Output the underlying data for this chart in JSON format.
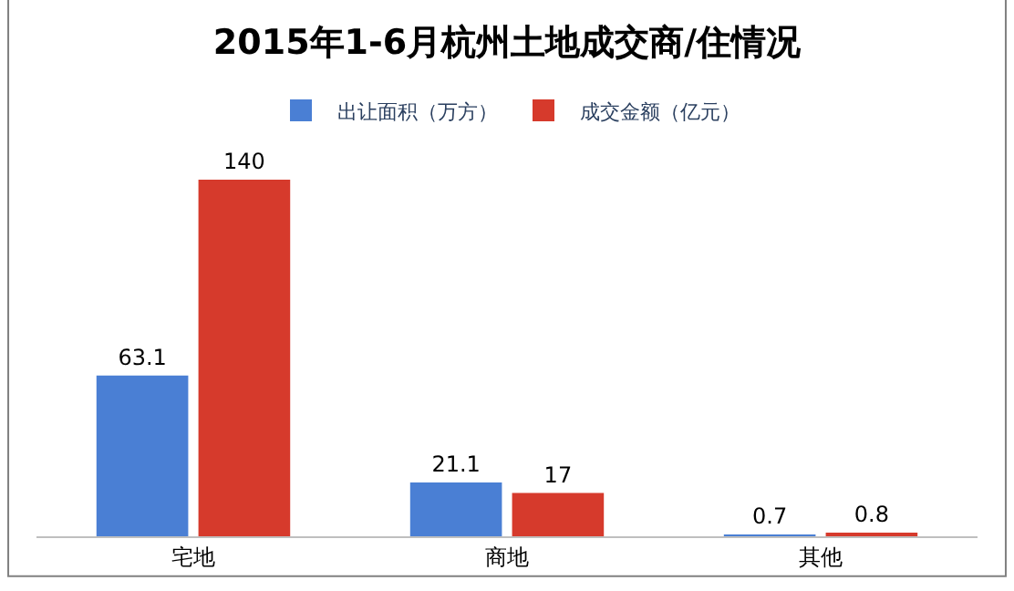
{
  "chart_data": {
    "type": "bar",
    "title": "2015年1-6月杭州土地成交商/住情况",
    "categories": [
      "宅地",
      "商地",
      "其他"
    ],
    "series": [
      {
        "name": "出让面积（万方）",
        "color": "#4a7fd4",
        "values": [
          63.1,
          21.1,
          0.7
        ]
      },
      {
        "name": "成交金额（亿元）",
        "color": "#d63a2c",
        "values": [
          140,
          17,
          0.8
        ]
      }
    ],
    "data_labels": true,
    "legend": "top"
  }
}
